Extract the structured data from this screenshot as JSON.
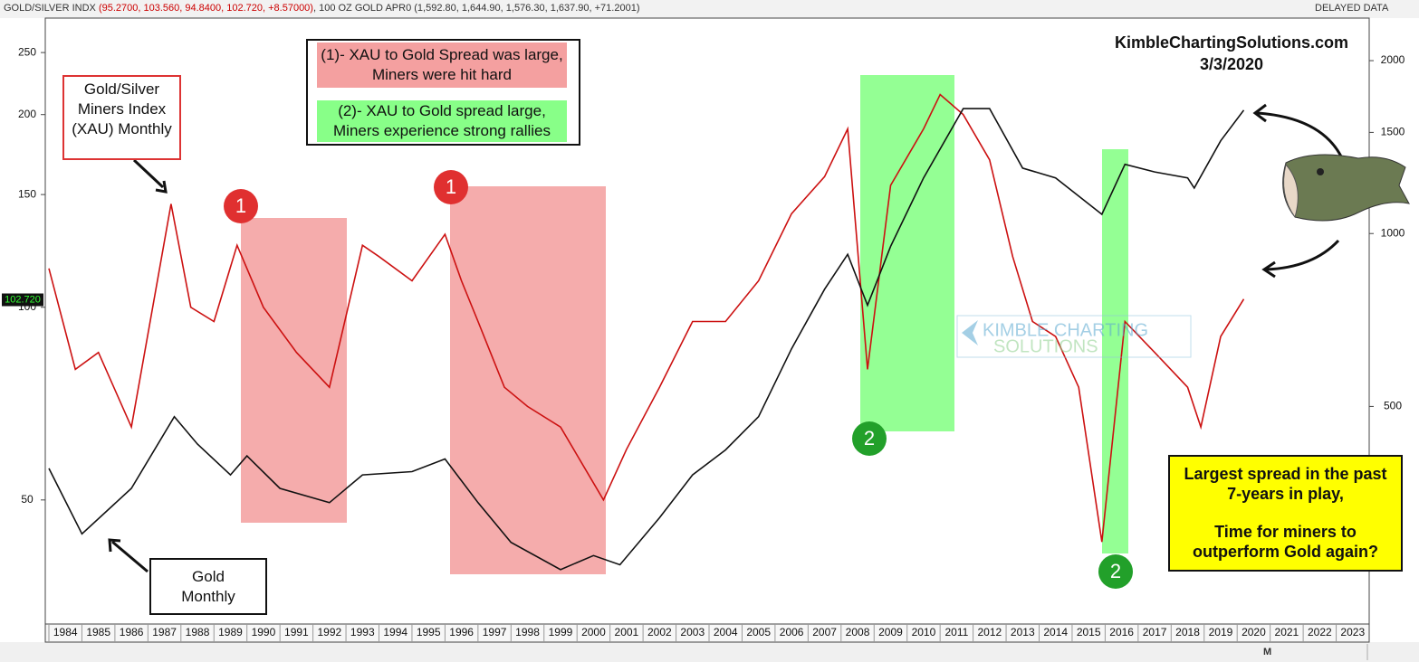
{
  "chart_data": {
    "type": "line",
    "log_scale": true,
    "xlim": [
      1984,
      2024
    ],
    "xticks": [
      1984,
      1985,
      1986,
      1987,
      1988,
      1989,
      1990,
      1991,
      1992,
      1993,
      1994,
      1995,
      1996,
      1997,
      1998,
      1999,
      2000,
      2001,
      2002,
      2003,
      2004,
      2005,
      2006,
      2007,
      2008,
      2009,
      2010,
      2011,
      2012,
      2013,
      2014,
      2015,
      2016,
      2017,
      2018,
      2019,
      2020,
      2021,
      2022,
      2023
    ],
    "ylim": [
      32,
      283
    ],
    "yticks": [
      50,
      100,
      150,
      200,
      250
    ],
    "y2lim": [
      209,
      2372
    ],
    "y2ticks": [
      500,
      1000,
      1500,
      2000
    ],
    "series": [
      {
        "name": "Gold/Silver Miners Index (XAU) Monthly",
        "color": "#cc1111",
        "x": [
          1984.0,
          1984.8,
          1985.5,
          1986.5,
          1987.7,
          1988.3,
          1989.0,
          1989.7,
          1990.5,
          1991.5,
          1992.5,
          1993.5,
          1994.0,
          1995.0,
          1996.0,
          1996.5,
          1997.0,
          1997.8,
          1998.5,
          1999.5,
          2000.8,
          2001.5,
          2002.5,
          2003.5,
          2004.5,
          2005.5,
          2006.5,
          2007.5,
          2008.2,
          2008.8,
          2009.5,
          2010.5,
          2011.0,
          2011.7,
          2012.5,
          2013.2,
          2013.8,
          2014.5,
          2015.2,
          2015.9,
          2016.6,
          2017.5,
          2018.5,
          2018.9,
          2019.5,
          2020.2
        ],
        "values": [
          115,
          80,
          85,
          65,
          145,
          100,
          95,
          125,
          100,
          85,
          75,
          125,
          120,
          110,
          130,
          110,
          95,
          75,
          70,
          65,
          50,
          60,
          75,
          95,
          95,
          110,
          140,
          160,
          190,
          80,
          155,
          190,
          215,
          200,
          170,
          120,
          95,
          90,
          75,
          43,
          95,
          85,
          75,
          65,
          90,
          103
        ]
      },
      {
        "name": "Gold Monthly",
        "color": "#111111",
        "axis": "y2",
        "x": [
          1984.0,
          1985.0,
          1986.5,
          1987.8,
          1988.5,
          1989.5,
          1990.0,
          1991.0,
          1992.5,
          1993.5,
          1995.0,
          1996.0,
          1997.0,
          1998.0,
          1999.5,
          2000.5,
          2001.3,
          2002.5,
          2003.5,
          2004.5,
          2005.5,
          2006.5,
          2007.5,
          2008.2,
          2008.8,
          2009.5,
          2010.5,
          2011.7,
          2012.5,
          2013.5,
          2014.5,
          2015.9,
          2016.6,
          2017.5,
          2018.5,
          2018.7,
          2019.5,
          2020.2
        ],
        "values": [
          390,
          300,
          360,
          480,
          430,
          380,
          410,
          360,
          340,
          380,
          385,
          405,
          340,
          290,
          260,
          275,
          265,
          320,
          380,
          420,
          480,
          630,
          800,
          920,
          750,
          950,
          1250,
          1650,
          1650,
          1300,
          1250,
          1080,
          1320,
          1280,
          1250,
          1200,
          1450,
          1640
        ]
      }
    ]
  },
  "annotations": {
    "header_xau": "GOLD/SILVER INDX",
    "header_xau_ohlc": "(95.2700, 103.560, 94.8400, 102.720, +8.57000)",
    "header_gold": ", 100 OZ GOLD APR0",
    "header_gold_ohlc": "(1,592.80, 1,644.90, 1,576.30, 1,637.90, +71.2001)",
    "delayed": "DELAYED DATA",
    "site": "KimbleChartingSolutions.com",
    "date": "3/3/2020",
    "legend_1": "(1)- XAU to Gold Spread was large, Miners were hit hard",
    "legend_2": "(2)- XAU to Gold spread large, Miners experience strong rallies",
    "note_1": "Largest spread in the past 7-years in play,",
    "note_2": "Time for miners to outperform Gold again?",
    "markers": [
      "1",
      "1",
      "2",
      "2"
    ],
    "watermark_1": "KIMBLE CHARTING",
    "watermark_2": "SOLUTIONS",
    "last_price": {
      "value": 102.72,
      "label": "102.720"
    },
    "toolbar_period": "M"
  }
}
